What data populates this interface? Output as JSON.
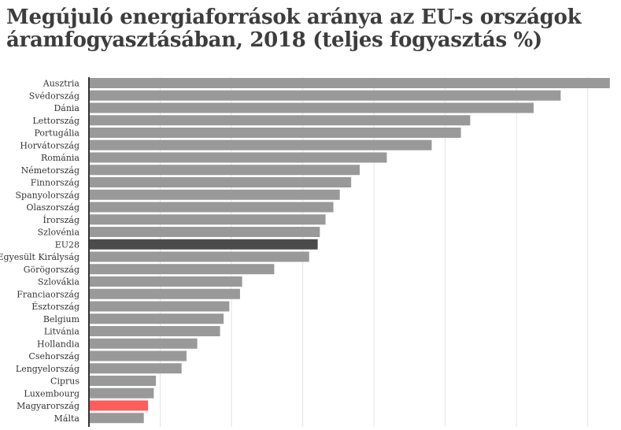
{
  "chart_data": {
    "type": "bar",
    "orientation": "horizontal",
    "title": "Megújuló energiaforrások aránya az EU-s országok áramfogyasztásában, 2018 (teljes fogyasztás %)",
    "categories": [
      "Ausztria",
      "Svédország",
      "Dánia",
      "Lettország",
      "Portugália",
      "Horvátország",
      "Románia",
      "Németország",
      "Finnország",
      "Spanyolország",
      "Olaszország",
      "Írország",
      "Szlovénia",
      "EU28",
      "Egyesült Királyság",
      "Görögország",
      "Szlovákia",
      "Franciaország",
      "Észtország",
      "Belgium",
      "Litvánia",
      "Hollandia",
      "Csehország",
      "Lengyelország",
      "Ciprus",
      "Luxembourg",
      "Magyarország",
      "Málta"
    ],
    "values": [
      73.1,
      66.2,
      62.4,
      53.5,
      52.2,
      48.1,
      41.8,
      38.0,
      36.8,
      35.2,
      34.3,
      33.2,
      32.4,
      32.1,
      30.9,
      26.0,
      21.5,
      21.2,
      19.7,
      18.9,
      18.4,
      15.2,
      13.7,
      13.0,
      9.4,
      9.1,
      8.3,
      7.7
    ],
    "highlight": {
      "EU28": "#4b4b4b",
      "Magyarország": "#ff5c5c"
    },
    "bar_color": "#999999",
    "xlim": [
      0,
      74
    ],
    "grid": true,
    "gridlines": [
      0,
      10,
      20,
      30,
      40,
      50,
      60,
      70
    ],
    "xlabel": "",
    "ylabel": ""
  }
}
